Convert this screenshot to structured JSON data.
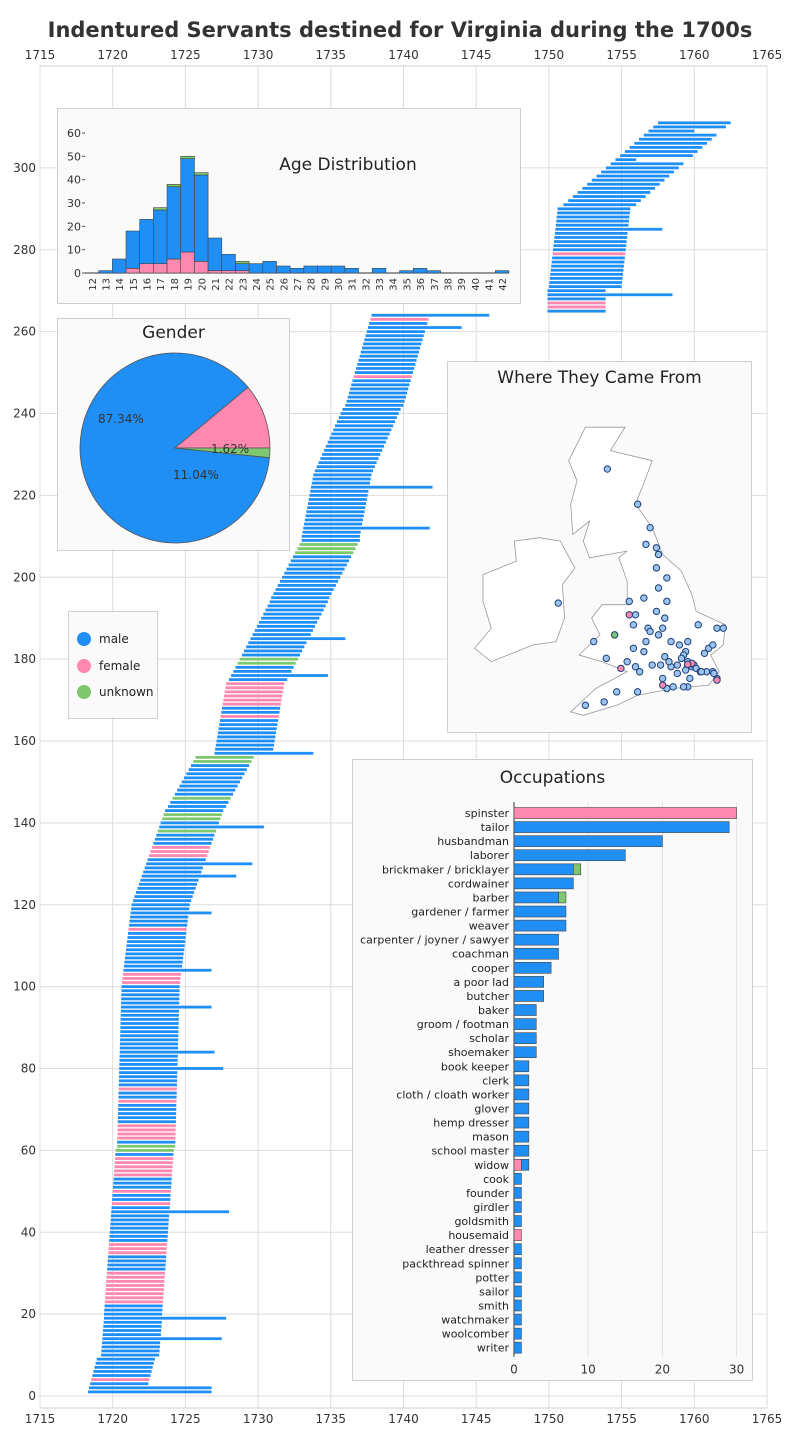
{
  "title": "Indentured Servants destined for Virginia during the 1700s",
  "colors": {
    "male": "#1f8ff5",
    "female": "#ff88b0",
    "unknown": "#7dc86e",
    "grid": "#dddddd",
    "text": "#333333"
  },
  "legend": [
    {
      "key": "male",
      "label": "male"
    },
    {
      "key": "female",
      "label": "female"
    },
    {
      "key": "unknown",
      "label": "unknown"
    }
  ],
  "chart_data": [
    {
      "type": "bar",
      "subtype": "timeline",
      "title": "Indentured Servants destined for Virginia during the 1700s",
      "xlim": [
        1715,
        1765
      ],
      "xticks": [
        1715,
        1720,
        1725,
        1730,
        1735,
        1740,
        1745,
        1750,
        1755,
        1760,
        1765
      ],
      "ylim": [
        0,
        320
      ],
      "yticks": [
        0,
        20,
        40,
        60,
        80,
        100,
        120,
        140,
        160,
        180,
        200,
        220,
        240,
        260,
        280,
        300
      ],
      "grid": true,
      "segments": [
        {
          "from": 1,
          "to": 9,
          "start_begin": 1718.3,
          "start_end": 1718.9,
          "dur": 4
        },
        {
          "from": 10,
          "to": 19,
          "start_begin": 1719.2,
          "start_end": 1719.4,
          "dur": 4
        },
        {
          "from": 20,
          "to": 60,
          "start_begin": 1719.4,
          "start_end": 1720.2,
          "dur": 4
        },
        {
          "from": 61,
          "to": 99,
          "start_begin": 1720.3,
          "start_end": 1720.6,
          "dur": 4
        },
        {
          "from": 100,
          "to": 120,
          "start_begin": 1720.6,
          "start_end": 1721.3,
          "dur": 4
        },
        {
          "from": 121,
          "to": 143,
          "start_begin": 1721.4,
          "start_end": 1723.6,
          "dur": 4
        },
        {
          "from": 144,
          "to": 156,
          "start_begin": 1723.8,
          "start_end": 1725.7,
          "dur": 4
        },
        {
          "from": 157,
          "to": 174,
          "start_begin": 1727.0,
          "start_end": 1727.8,
          "dur": 4
        },
        {
          "from": 175,
          "to": 194,
          "start_begin": 1728.0,
          "start_end": 1730.8,
          "dur": 4
        },
        {
          "from": 195,
          "to": 209,
          "start_begin": 1730.9,
          "start_end": 1733.0,
          "dur": 4
        },
        {
          "from": 210,
          "to": 225,
          "start_begin": 1733.0,
          "start_end": 1733.8,
          "dur": 4
        },
        {
          "from": 226,
          "to": 241,
          "start_begin": 1733.9,
          "start_end": 1735.8,
          "dur": 4
        },
        {
          "from": 242,
          "to": 264,
          "start_begin": 1736.0,
          "start_end": 1737.8,
          "dur": 4
        },
        {
          "from": 265,
          "to": 270,
          "start_begin": 1749.9,
          "start_end": 1749.9,
          "dur": 4
        },
        {
          "from": 271,
          "to": 290,
          "start_begin": 1750.0,
          "start_end": 1750.6,
          "dur": 5
        },
        {
          "from": 291,
          "to": 311,
          "start_begin": 1751.0,
          "start_end": 1757.5,
          "dur": 5
        }
      ],
      "female_ids": [
        4,
        23,
        24,
        25,
        26,
        27,
        28,
        29,
        30,
        35,
        36,
        37,
        47,
        50,
        54,
        55,
        56,
        57,
        58,
        63,
        64,
        65,
        66,
        72,
        75,
        101,
        102,
        103,
        114,
        132,
        133,
        134,
        166,
        169,
        170,
        171,
        172,
        173,
        174,
        249,
        263,
        266,
        267,
        279
      ],
      "unknown_ids": [
        60,
        61,
        138,
        141,
        142,
        146,
        155,
        156,
        179,
        180,
        206,
        207,
        208
      ],
      "long_ids": {
        "1": 1726.8,
        "2": 1726.8,
        "14": 1727.5,
        "19": 1727.8,
        "45": 1728.0,
        "80": 1727.6,
        "84": 1727.0,
        "95": 1726.8,
        "104": 1726.8,
        "118": 1726.8,
        "127": 1728.5,
        "130": 1729.6,
        "139": 1730.4,
        "157": 1733.8,
        "176": 1734.8,
        "185": 1736.0,
        "212": 1741.8,
        "222": 1742.0,
        "261": 1744.0,
        "264": 1745.9,
        "269": 1758.5,
        "285": 1757.8,
        "302": 1756.0,
        "309": 1760.0,
        "314": 1762.2
      }
    },
    {
      "type": "bar",
      "title": "Age Distribution",
      "stacked": true,
      "categories": [
        "12",
        "13",
        "14",
        "15",
        "16",
        "17",
        "18",
        "19",
        "20",
        "21",
        "22",
        "23",
        "24",
        "25",
        "26",
        "27",
        "28",
        "29",
        "30",
        "31",
        "32",
        "33",
        "34",
        "35",
        "36",
        "37",
        "38",
        "39",
        "40",
        "41",
        "42"
      ],
      "series": [
        {
          "name": "male",
          "values": [
            0,
            1,
            6,
            16,
            19,
            23,
            31,
            40,
            37,
            14,
            7,
            3,
            4,
            5,
            3,
            2,
            3,
            3,
            3,
            2,
            0,
            2,
            0,
            1,
            2,
            1,
            0,
            0,
            0,
            0,
            1
          ]
        },
        {
          "name": "female",
          "values": [
            0,
            0,
            0,
            2,
            4,
            4,
            6,
            9,
            5,
            1,
            1,
            1,
            0,
            0,
            0,
            0,
            0,
            0,
            0,
            0,
            0,
            0,
            0,
            0,
            0,
            0,
            0,
            0,
            0,
            0,
            0
          ]
        },
        {
          "name": "unknown",
          "values": [
            0,
            0,
            0,
            0,
            0,
            1,
            1,
            1,
            1,
            0,
            0,
            1,
            0,
            0,
            0,
            0,
            0,
            0,
            0,
            0,
            0,
            0,
            0,
            0,
            0,
            0,
            0,
            0,
            0,
            0,
            0
          ]
        }
      ],
      "ylim": [
        0,
        63
      ],
      "yticks": [
        0,
        10,
        20,
        30,
        40,
        50,
        60
      ]
    },
    {
      "type": "pie",
      "title": "Gender",
      "labels": [
        "male",
        "female",
        "unknown"
      ],
      "values": [
        87.34,
        11.04,
        1.62
      ],
      "value_labels": [
        "87.34%",
        "11.04%",
        "1.62%"
      ]
    },
    {
      "type": "scatter",
      "title": "Where They Came From",
      "x_unit": "longitude",
      "y_unit": "latitude",
      "points_male": [
        [
          -3.95,
          57.35
        ],
        [
          -2.5,
          56.3
        ],
        [
          -1.9,
          55.6
        ],
        [
          -2.1,
          55.1
        ],
        [
          -1.6,
          55.0
        ],
        [
          -1.5,
          54.8
        ],
        [
          -1.6,
          54.4
        ],
        [
          -1.1,
          54.1
        ],
        [
          -2.9,
          53.4
        ],
        [
          -2.2,
          53.5
        ],
        [
          -1.5,
          53.8
        ],
        [
          -1.1,
          53.4
        ],
        [
          -1.6,
          53.1
        ],
        [
          -1.2,
          52.9
        ],
        [
          -2.6,
          53.0
        ],
        [
          -2.7,
          52.7
        ],
        [
          -2.0,
          52.6
        ],
        [
          -1.9,
          52.5
        ],
        [
          -1.5,
          52.4
        ],
        [
          -1.3,
          52.6
        ],
        [
          -0.9,
          52.2
        ],
        [
          -0.1,
          52.2
        ],
        [
          -0.5,
          52.1
        ],
        [
          -0.2,
          51.9
        ],
        [
          -0.3,
          51.8
        ],
        [
          -0.4,
          51.7
        ],
        [
          -0.1,
          51.6
        ],
        [
          -0.05,
          51.5
        ],
        [
          0.0,
          51.52
        ],
        [
          -0.1,
          51.48
        ],
        [
          0.1,
          51.45
        ],
        [
          0.2,
          51.5
        ],
        [
          0.3,
          51.4
        ],
        [
          0.5,
          51.3
        ],
        [
          0.8,
          51.3
        ],
        [
          1.1,
          51.3
        ],
        [
          1.3,
          51.1
        ],
        [
          0.7,
          51.85
        ],
        [
          0.9,
          52.0
        ],
        [
          1.1,
          52.1
        ],
        [
          1.3,
          52.6
        ],
        [
          1.6,
          52.6
        ],
        [
          0.4,
          52.7
        ],
        [
          -1.2,
          51.75
        ],
        [
          -1.4,
          51.5
        ],
        [
          -1.8,
          51.5
        ],
        [
          -2.6,
          51.45
        ],
        [
          -2.4,
          51.3
        ],
        [
          -1.3,
          51.1
        ],
        [
          -1.1,
          50.8
        ],
        [
          -0.8,
          50.85
        ],
        [
          -0.1,
          50.85
        ],
        [
          -2.5,
          50.7
        ],
        [
          -3.5,
          50.7
        ],
        [
          -4.1,
          50.4
        ],
        [
          -5.0,
          50.3
        ],
        [
          -3.0,
          51.6
        ],
        [
          -4.0,
          51.7
        ],
        [
          -4.6,
          52.2
        ],
        [
          -6.3,
          53.35
        ],
        [
          -2.2,
          51.9
        ],
        [
          -2.7,
          52.0
        ],
        [
          -0.6,
          51.25
        ],
        [
          0.0,
          51.1
        ],
        [
          -0.3,
          50.85
        ],
        [
          1.15,
          51.25
        ],
        [
          0.55,
          51.3
        ],
        [
          -0.2,
          51.35
        ],
        [
          -0.6,
          51.5
        ],
        [
          -0.9,
          51.45
        ],
        [
          -1.0,
          51.6
        ],
        [
          -2.1,
          52.2
        ]
      ],
      "points_female": [
        [
          -2.9,
          53.0
        ],
        [
          -3.3,
          51.4
        ],
        [
          0.1,
          51.55
        ],
        [
          -0.1,
          51.52
        ],
        [
          1.3,
          51.05
        ],
        [
          -1.3,
          50.9
        ]
      ],
      "points_unknown": [
        [
          -3.6,
          52.4
        ]
      ]
    },
    {
      "type": "bar",
      "orientation": "horizontal",
      "stacked": true,
      "title": "Occupations",
      "categories": [
        "spinster",
        "tailor",
        "husbandman",
        "laborer",
        "brickmaker / bricklayer",
        "cordwainer",
        "barber",
        "gardener / farmer",
        "weaver",
        "carpenter / joyner / sawyer",
        "coachman",
        "cooper",
        "a poor lad",
        "butcher",
        "baker",
        "groom / footman",
        "scholar",
        "shoemaker",
        "book keeper",
        "clerk",
        "cloth / cloath worker",
        "glover",
        "hemp dresser",
        "mason",
        "school master",
        "widow",
        "cook",
        "founder",
        "girdler",
        "goldsmith",
        "housemaid",
        "leather dresser",
        "packthread spinner",
        "potter",
        "sailor",
        "smith",
        "watchmaker",
        "woolcomber",
        "writer"
      ],
      "series": [
        {
          "name": "male",
          "values": [
            0,
            29,
            20,
            15,
            8,
            8,
            6,
            7,
            7,
            6,
            6,
            5,
            4,
            4,
            3,
            3,
            3,
            3,
            2,
            2,
            2,
            2,
            2,
            2,
            2,
            1,
            1,
            1,
            1,
            1,
            0,
            1,
            1,
            1,
            1,
            1,
            1,
            1,
            1
          ]
        },
        {
          "name": "female",
          "values": [
            30,
            0,
            0,
            0,
            0,
            0,
            0,
            0,
            0,
            0,
            0,
            0,
            0,
            0,
            0,
            0,
            0,
            0,
            0,
            0,
            0,
            0,
            0,
            0,
            0,
            1,
            0,
            0,
            0,
            0,
            1,
            0,
            0,
            0,
            0,
            0,
            0,
            0,
            0
          ]
        },
        {
          "name": "unknown",
          "values": [
            0,
            0,
            0,
            0,
            1,
            0,
            1,
            0,
            0,
            0,
            0,
            0,
            0,
            0,
            0,
            0,
            0,
            0,
            0,
            0,
            0,
            0,
            0,
            0,
            0,
            0,
            0,
            0,
            0,
            0,
            0,
            0,
            0,
            0,
            0,
            0,
            0,
            0,
            0
          ]
        }
      ],
      "xlim": [
        0,
        31
      ],
      "xticks": [
        0,
        10,
        20,
        30
      ]
    }
  ]
}
